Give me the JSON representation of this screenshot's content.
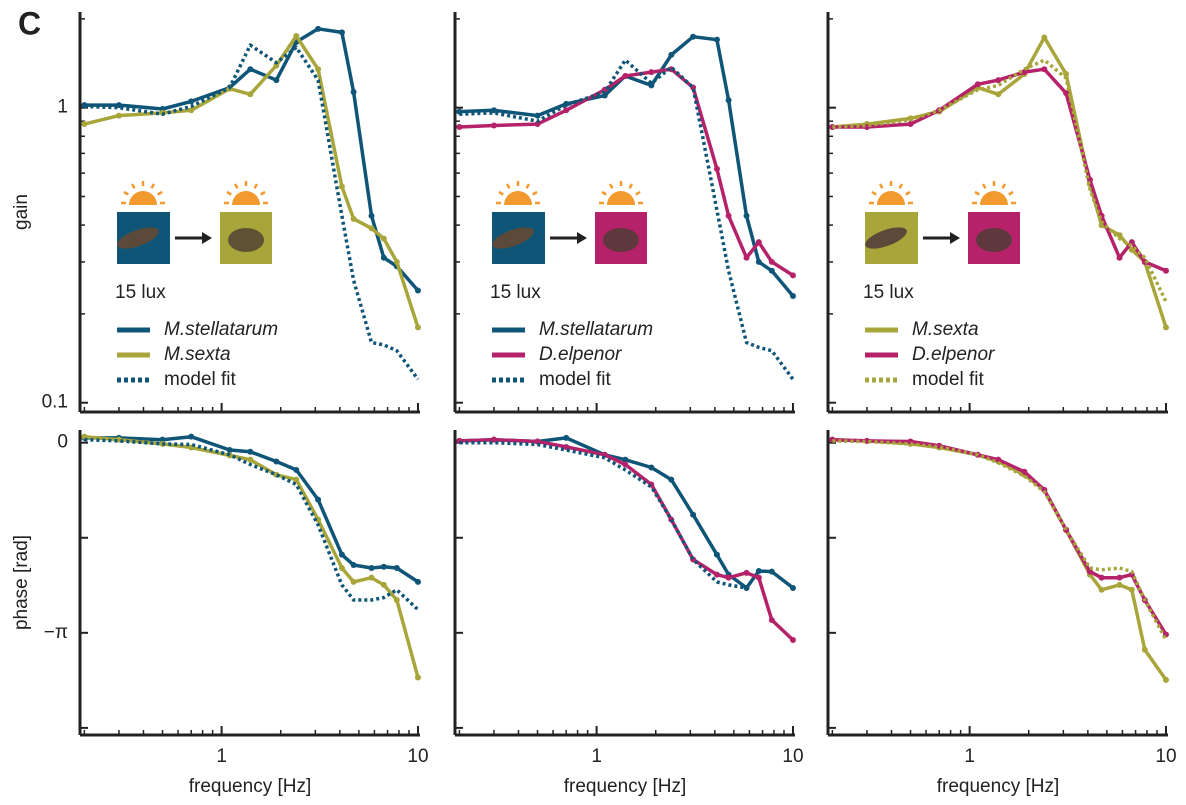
{
  "panel_label": "C",
  "chart_data": [
    {
      "type": "line",
      "log_x": true,
      "log_y": true,
      "xlim": [
        0.19,
        10.24
      ],
      "ylim": [
        0.093,
        2.11
      ],
      "xticks": [
        1,
        10
      ],
      "xminorticks": [
        0.2,
        0.3,
        0.4,
        0.5,
        0.6,
        0.7,
        0.8,
        0.9,
        2,
        3,
        4,
        5,
        6,
        7,
        8,
        9
      ],
      "yticks": [
        0.1,
        1
      ],
      "yminorticks": [
        0.2,
        0.3,
        0.4,
        0.5,
        0.6,
        0.7,
        0.8,
        0.9,
        2
      ],
      "show_xtick_labels": false,
      "show_ytick_labels": true,
      "ylabel": "gain",
      "annotation": "15 lux",
      "legend": true,
      "x": [
        0.2,
        0.3,
        0.5,
        0.7,
        1.1,
        1.4,
        1.9,
        2.4,
        3.1,
        4.1,
        4.7,
        5.8,
        6.7,
        7.8,
        10
      ],
      "series": [
        {
          "name": "M.stellatarum",
          "color": "#0e5578",
          "italic": true,
          "markers": true,
          "linestyle": "solid",
          "values": [
            1.02,
            1.02,
            0.99,
            1.05,
            1.17,
            1.35,
            1.24,
            1.67,
            1.85,
            1.8,
            1.13,
            0.43,
            0.31,
            0.29,
            0.24
          ]
        },
        {
          "name": "M.sexta",
          "color": "#a8a63a",
          "italic": true,
          "markers": true,
          "linestyle": "solid",
          "values": [
            0.88,
            0.94,
            0.96,
            0.98,
            1.16,
            1.11,
            1.39,
            1.75,
            1.35,
            0.54,
            0.42,
            0.39,
            0.36,
            0.3,
            0.18
          ]
        },
        {
          "name": "model fit",
          "color": "#0e5578",
          "italic": false,
          "markers": false,
          "linestyle": "dotted",
          "values": [
            1.01,
            1.0,
            0.95,
            1.01,
            1.17,
            1.63,
            1.42,
            1.6,
            1.24,
            0.43,
            0.26,
            0.16,
            0.157,
            0.15,
            0.12
          ]
        }
      ]
    },
    {
      "type": "line",
      "log_x": true,
      "log_y": true,
      "xlim": [
        0.19,
        10.24
      ],
      "ylim": [
        0.093,
        2.11
      ],
      "xticks": [
        1,
        10
      ],
      "xminorticks": [
        0.2,
        0.3,
        0.4,
        0.5,
        0.6,
        0.7,
        0.8,
        0.9,
        2,
        3,
        4,
        5,
        6,
        7,
        8,
        9
      ],
      "yticks": [
        0.1,
        1
      ],
      "yminorticks": [
        0.2,
        0.3,
        0.4,
        0.5,
        0.6,
        0.7,
        0.8,
        0.9,
        2
      ],
      "show_xtick_labels": false,
      "show_ytick_labels": false,
      "annotation": "15 lux",
      "legend": true,
      "x": [
        0.2,
        0.3,
        0.5,
        0.7,
        1.1,
        1.4,
        1.9,
        2.4,
        3.1,
        4.1,
        4.7,
        5.8,
        6.7,
        7.8,
        10
      ],
      "series": [
        {
          "name": "M.stellatarum",
          "color": "#0e5578",
          "italic": true,
          "markers": true,
          "linestyle": "solid",
          "values": [
            0.97,
            0.98,
            0.94,
            1.03,
            1.1,
            1.28,
            1.19,
            1.51,
            1.74,
            1.7,
            1.06,
            0.43,
            0.3,
            0.28,
            0.23
          ]
        },
        {
          "name": "D.elpenor",
          "color": "#b5226a",
          "italic": true,
          "markers": true,
          "linestyle": "solid",
          "values": [
            0.86,
            0.87,
            0.88,
            0.98,
            1.15,
            1.28,
            1.32,
            1.35,
            1.17,
            0.62,
            0.43,
            0.31,
            0.35,
            0.3,
            0.27
          ]
        },
        {
          "name": "model fit",
          "color": "#0e5578",
          "italic": false,
          "markers": false,
          "linestyle": "dotted",
          "values": [
            0.95,
            0.96,
            0.9,
            1.02,
            1.13,
            1.45,
            1.21,
            1.37,
            1.17,
            0.45,
            0.28,
            0.16,
            0.154,
            0.15,
            0.12
          ]
        }
      ]
    },
    {
      "type": "line",
      "log_x": true,
      "log_y": true,
      "xlim": [
        0.19,
        10.24
      ],
      "ylim": [
        0.093,
        2.11
      ],
      "xticks": [
        1,
        10
      ],
      "xminorticks": [
        0.2,
        0.3,
        0.4,
        0.5,
        0.6,
        0.7,
        0.8,
        0.9,
        2,
        3,
        4,
        5,
        6,
        7,
        8,
        9
      ],
      "yticks": [
        0.1,
        1
      ],
      "yminorticks": [
        0.2,
        0.3,
        0.4,
        0.5,
        0.6,
        0.7,
        0.8,
        0.9,
        2
      ],
      "show_xtick_labels": false,
      "show_ytick_labels": false,
      "annotation": "15 lux",
      "legend": true,
      "x": [
        0.2,
        0.3,
        0.5,
        0.7,
        1.1,
        1.4,
        1.9,
        2.4,
        3.1,
        4.1,
        4.7,
        5.8,
        6.7,
        7.8,
        10
      ],
      "series": [
        {
          "name": "M.sexta",
          "color": "#a8a63a",
          "italic": true,
          "markers": true,
          "linestyle": "solid",
          "values": [
            0.86,
            0.88,
            0.92,
            0.97,
            1.17,
            1.11,
            1.3,
            1.73,
            1.3,
            0.55,
            0.4,
            0.37,
            0.33,
            0.3,
            0.18
          ]
        },
        {
          "name": "D.elpenor",
          "color": "#b5226a",
          "italic": true,
          "markers": true,
          "linestyle": "solid",
          "values": [
            0.86,
            0.86,
            0.88,
            0.98,
            1.2,
            1.24,
            1.32,
            1.35,
            1.12,
            0.57,
            0.43,
            0.31,
            0.35,
            0.3,
            0.28
          ]
        },
        {
          "name": "model fit",
          "color": "#a8a63a",
          "italic": false,
          "markers": false,
          "linestyle": "dotted",
          "values": [
            0.86,
            0.87,
            0.91,
            0.98,
            1.15,
            1.19,
            1.35,
            1.45,
            1.26,
            0.53,
            0.41,
            0.36,
            0.34,
            0.31,
            0.22
          ]
        }
      ]
    },
    {
      "type": "line",
      "log_x": true,
      "log_y": false,
      "xlim": [
        0.19,
        10.24
      ],
      "ylim": [
        -4.83,
        0.21
      ],
      "xticks": [
        1,
        10
      ],
      "xminorticks": [
        0.2,
        0.3,
        0.4,
        0.5,
        0.6,
        0.7,
        0.8,
        0.9,
        2,
        3,
        4,
        5,
        6,
        7,
        8,
        9
      ],
      "yticks": [
        0,
        {
          "value": -3.1416,
          "label": "−π"
        }
      ],
      "yminorticks": [
        -1.5708,
        -4.7124
      ],
      "show_xtick_labels": true,
      "show_ytick_labels": true,
      "ylabel": "phase [rad]",
      "xlabel": "frequency [Hz]",
      "x": [
        0.2,
        0.3,
        0.5,
        0.7,
        1.1,
        1.4,
        1.9,
        2.4,
        3.1,
        4.1,
        4.7,
        5.8,
        6.7,
        7.8,
        10
      ],
      "series": [
        {
          "name": "M.stellatarum",
          "color": "#0e5578",
          "markers": true,
          "linestyle": "solid",
          "values": [
            0.08,
            0.08,
            0.05,
            0.1,
            -0.12,
            -0.15,
            -0.31,
            -0.45,
            -0.94,
            -1.85,
            -2.02,
            -2.07,
            -2.05,
            -2.07,
            -2.3
          ]
        },
        {
          "name": "M.sexta",
          "color": "#a8a63a",
          "markers": true,
          "linestyle": "solid",
          "values": [
            0.1,
            0.05,
            -0.02,
            -0.08,
            -0.21,
            -0.28,
            -0.53,
            -0.61,
            -1.27,
            -2.07,
            -2.3,
            -2.23,
            -2.35,
            -2.6,
            -3.88
          ]
        },
        {
          "name": "model fit",
          "color": "#0e5578",
          "markers": false,
          "linestyle": "dotted",
          "values": [
            0.05,
            0.03,
            -0.02,
            -0.03,
            -0.2,
            -0.36,
            -0.53,
            -0.69,
            -1.36,
            -2.35,
            -2.6,
            -2.6,
            -2.56,
            -2.43,
            -2.76
          ]
        }
      ]
    },
    {
      "type": "line",
      "log_x": true,
      "log_y": false,
      "xlim": [
        0.19,
        10.24
      ],
      "ylim": [
        -4.83,
        0.21
      ],
      "xticks": [
        1,
        10
      ],
      "xminorticks": [
        0.2,
        0.3,
        0.4,
        0.5,
        0.6,
        0.7,
        0.8,
        0.9,
        2,
        3,
        4,
        5,
        6,
        7,
        8,
        9
      ],
      "yticks": [
        0,
        -3.1416
      ],
      "yminorticks": [
        -1.5708,
        -4.7124
      ],
      "show_xtick_labels": true,
      "show_ytick_labels": false,
      "xlabel": "frequency [Hz]",
      "x": [
        0.2,
        0.3,
        0.5,
        0.7,
        1.1,
        1.4,
        1.9,
        2.4,
        3.1,
        4.1,
        4.7,
        5.8,
        6.7,
        7.8,
        10
      ],
      "series": [
        {
          "name": "M.stellatarum",
          "color": "#0e5578",
          "markers": true,
          "linestyle": "solid",
          "values": [
            0.03,
            0.05,
            0.02,
            0.08,
            -0.2,
            -0.28,
            -0.41,
            -0.61,
            -1.19,
            -1.85,
            -2.18,
            -2.4,
            -2.12,
            -2.13,
            -2.4
          ]
        },
        {
          "name": "D.elpenor",
          "color": "#b5226a",
          "markers": true,
          "linestyle": "solid",
          "values": [
            0.03,
            0.05,
            0.02,
            -0.07,
            -0.2,
            -0.36,
            -0.69,
            -1.27,
            -1.93,
            -2.18,
            -2.23,
            -2.15,
            -2.23,
            -2.93,
            -3.26
          ]
        },
        {
          "name": "model fit",
          "color": "#0e5578",
          "markers": false,
          "linestyle": "dotted",
          "values": [
            0,
            0,
            -0.03,
            -0.12,
            -0.25,
            -0.45,
            -0.73,
            -1.27,
            -1.93,
            -2.3,
            -2.35,
            -2.4,
            null,
            null,
            null
          ]
        }
      ]
    },
    {
      "type": "line",
      "log_x": true,
      "log_y": false,
      "xlim": [
        0.19,
        10.24
      ],
      "ylim": [
        -4.83,
        0.21
      ],
      "xticks": [
        1,
        10
      ],
      "xminorticks": [
        0.2,
        0.3,
        0.4,
        0.5,
        0.6,
        0.7,
        0.8,
        0.9,
        2,
        3,
        4,
        5,
        6,
        7,
        8,
        9
      ],
      "yticks": [
        0,
        -3.1416
      ],
      "yminorticks": [
        -1.5708,
        -4.7124
      ],
      "show_xtick_labels": true,
      "show_ytick_labels": false,
      "xlabel": "frequency [Hz]",
      "x": [
        0.2,
        0.3,
        0.5,
        0.7,
        1.1,
        1.4,
        1.9,
        2.4,
        3.1,
        4.1,
        4.7,
        5.8,
        6.7,
        7.8,
        10
      ],
      "series": [
        {
          "name": "M.sexta",
          "color": "#a8a63a",
          "markers": true,
          "linestyle": "solid",
          "values": [
            0.05,
            0.03,
            -0.02,
            -0.08,
            -0.2,
            -0.31,
            -0.53,
            -0.78,
            -1.44,
            -2.18,
            -2.43,
            -2.35,
            -2.43,
            -3.42,
            -3.92
          ]
        },
        {
          "name": "D.elpenor",
          "color": "#b5226a",
          "markers": true,
          "linestyle": "solid",
          "values": [
            0.05,
            0.03,
            0.02,
            -0.05,
            -0.2,
            -0.28,
            -0.48,
            -0.78,
            -1.44,
            -2.13,
            -2.23,
            -2.23,
            -2.18,
            -2.6,
            -3.17
          ]
        },
        {
          "name": "model fit",
          "color": "#a8a63a",
          "markers": false,
          "linestyle": "dotted",
          "values": [
            0.03,
            0.02,
            -0.02,
            -0.07,
            -0.2,
            -0.33,
            -0.55,
            -0.81,
            -1.44,
            -2.07,
            -2.1,
            -2.07,
            -2.13,
            -2.6,
            -3.26
          ]
        }
      ]
    }
  ]
}
